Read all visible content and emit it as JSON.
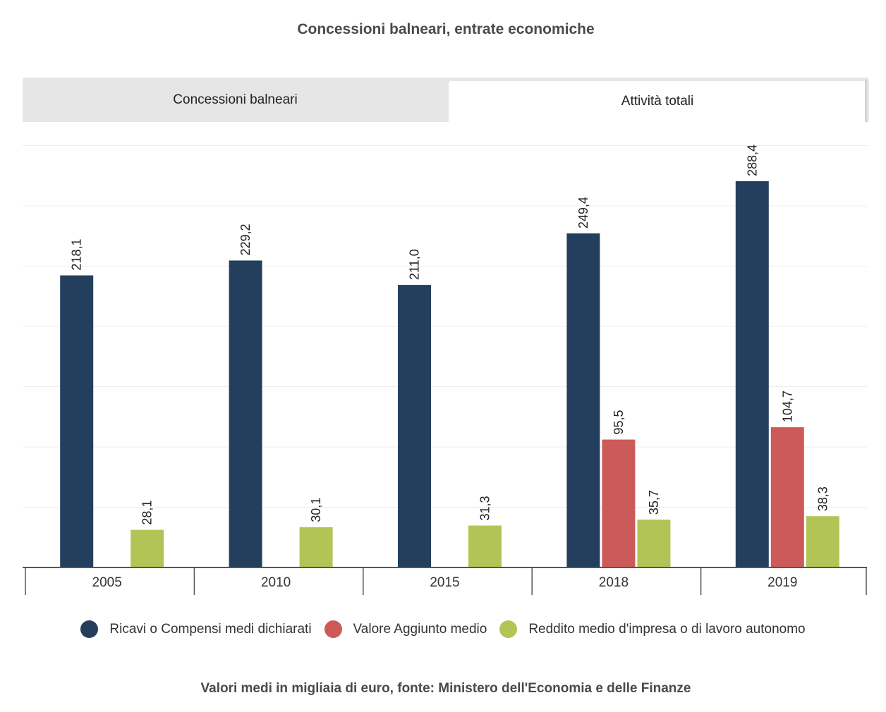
{
  "title": "Concessioni balneari, entrate economiche",
  "tabs": [
    {
      "label": "Concessioni balneari",
      "active": false
    },
    {
      "label": "Attività totali",
      "active": true
    }
  ],
  "footer": "Valori medi in migliaia di euro, fonte: Ministero dell'Economia e delle Finanze",
  "chart_data": {
    "type": "bar",
    "categories": [
      "2005",
      "2010",
      "2015",
      "2018",
      "2019"
    ],
    "series": [
      {
        "name": "Ricavi o Compensi medi dichiarati",
        "color": "#243f5e",
        "values": [
          218.1,
          229.2,
          211.0,
          249.4,
          288.4
        ],
        "labels": [
          "218,1",
          "229,2",
          "211,0",
          "249,4",
          "288,4"
        ]
      },
      {
        "name": "Valore Aggiunto medio",
        "color": "#cc5a58",
        "values": [
          null,
          null,
          null,
          95.5,
          104.7
        ],
        "labels": [
          "",
          "",
          "",
          "95,5",
          "104,7"
        ]
      },
      {
        "name": "Reddito medio d'impresa o di lavoro autonomo",
        "color": "#b3c457",
        "values": [
          28.1,
          30.1,
          31.3,
          35.7,
          38.3
        ],
        "labels": [
          "28,1",
          "30,1",
          "31,3",
          "35,7",
          "38,3"
        ]
      }
    ],
    "ylim": [
      0,
      350
    ],
    "grid": true,
    "y_tick_labels_shown": false,
    "legend_position": "bottom"
  }
}
